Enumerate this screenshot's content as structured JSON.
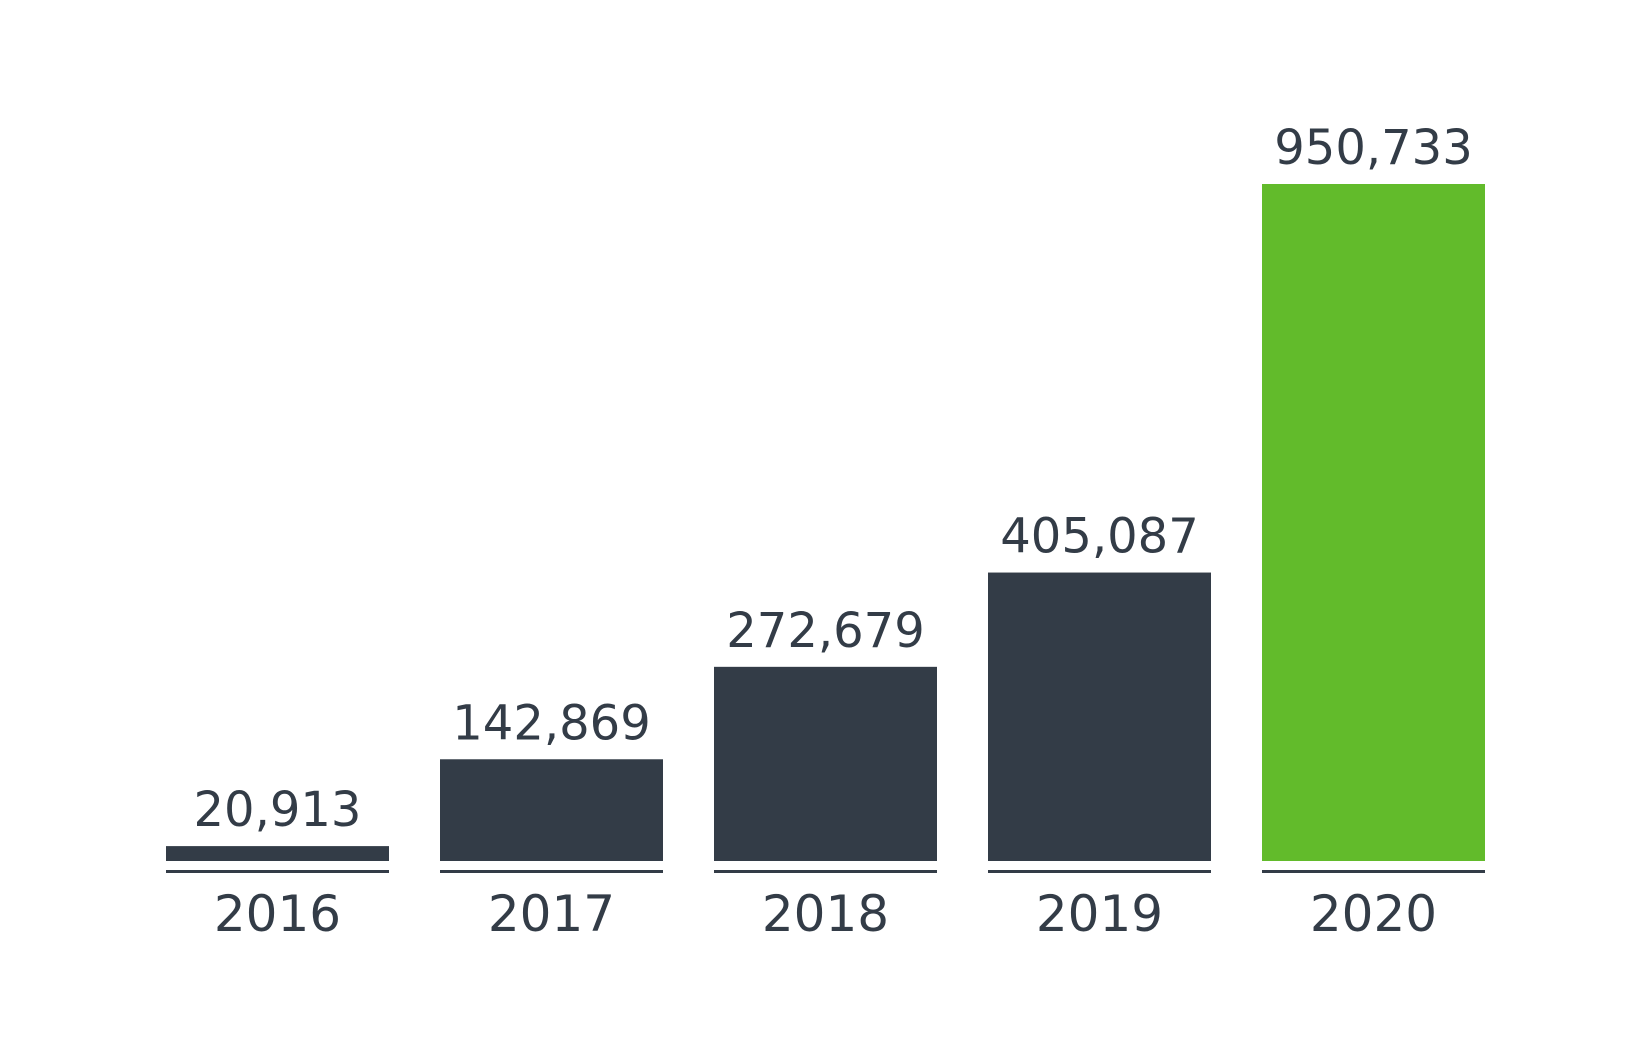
{
  "chart_data": {
    "type": "bar",
    "categories": [
      "2016",
      "2017",
      "2018",
      "2019",
      "2020"
    ],
    "values": [
      20913,
      142869,
      272679,
      405087,
      950733
    ],
    "value_labels": [
      "20,913",
      "142,869",
      "272,679",
      "405,087",
      "950,733"
    ],
    "title": "",
    "xlabel": "",
    "ylabel": "",
    "ylim": [
      0,
      950733
    ],
    "grid": false,
    "legend": "none",
    "colors": {
      "default_bar": "#333c47",
      "highlight_bar": "#62bb2b",
      "baseline": "#333c47",
      "text": "#333c47"
    },
    "highlight_category": "2020"
  }
}
